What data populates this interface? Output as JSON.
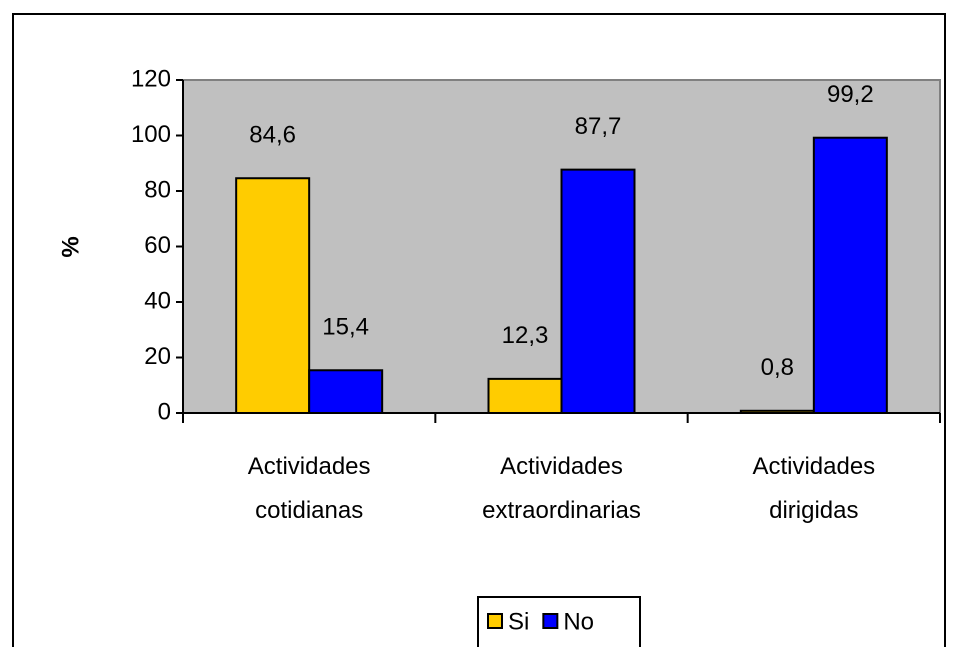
{
  "chart_data": {
    "type": "bar",
    "y_label": "%",
    "categories": [
      "Actividades cotidianas",
      "Actividades extraordinarias",
      "Actividades dirigidas"
    ],
    "series": [
      {
        "name": "Si",
        "color": "#ffcc00",
        "values": [
          84.6,
          12.3,
          0.8
        ],
        "value_labels": [
          "84,6",
          "12,3",
          "0,8"
        ]
      },
      {
        "name": "No",
        "color": "#0000ff",
        "values": [
          15.4,
          87.7,
          99.2
        ],
        "value_labels": [
          "15,4",
          "87,7",
          "99,2"
        ]
      }
    ],
    "ylim": [
      0,
      120
    ],
    "yticks": [
      0,
      20,
      40,
      60,
      80,
      100,
      120
    ],
    "plot_background": "#c0c0c0",
    "legend": "bottom"
  }
}
